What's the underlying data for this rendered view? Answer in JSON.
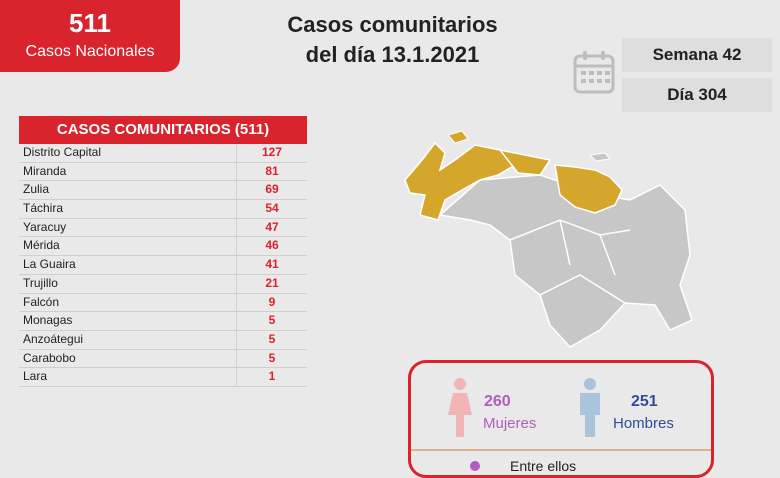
{
  "national": {
    "count": "511",
    "label": "Casos Nacionales"
  },
  "title": {
    "line1": "Casos comunitarios",
    "line2": "del día 13.1.2021"
  },
  "week_label": "Semana 42",
  "day_label": "Día 304",
  "table": {
    "header": "CASOS COMUNITARIOS (511)",
    "rows": [
      {
        "name": "Distrito Capital",
        "value": "127"
      },
      {
        "name": "Miranda",
        "value": "81"
      },
      {
        "name": "Zulia",
        "value": "69"
      },
      {
        "name": "Táchira",
        "value": "54"
      },
      {
        "name": "Yaracuy",
        "value": "47"
      },
      {
        "name": "Mérida",
        "value": "46"
      },
      {
        "name": "La Guaira",
        "value": "41"
      },
      {
        "name": "Trujillo",
        "value": "21"
      },
      {
        "name": "Falcón",
        "value": "9"
      },
      {
        "name": "Monagas",
        "value": "5"
      },
      {
        "name": "Anzoátegui",
        "value": "5"
      },
      {
        "name": "Carabobo",
        "value": "5"
      },
      {
        "name": "Lara",
        "value": "1"
      }
    ]
  },
  "gender": {
    "women_count": "260",
    "women_label": "Mujeres",
    "men_count": "251",
    "men_label": "Hombres"
  },
  "extra_text": "Entre ellos",
  "colors": {
    "accent": "#d9232d",
    "highlight_state": "#d4a72c",
    "other_state": "#c7c7c7",
    "women": "#b05dc2",
    "men": "#2f4d9b"
  }
}
